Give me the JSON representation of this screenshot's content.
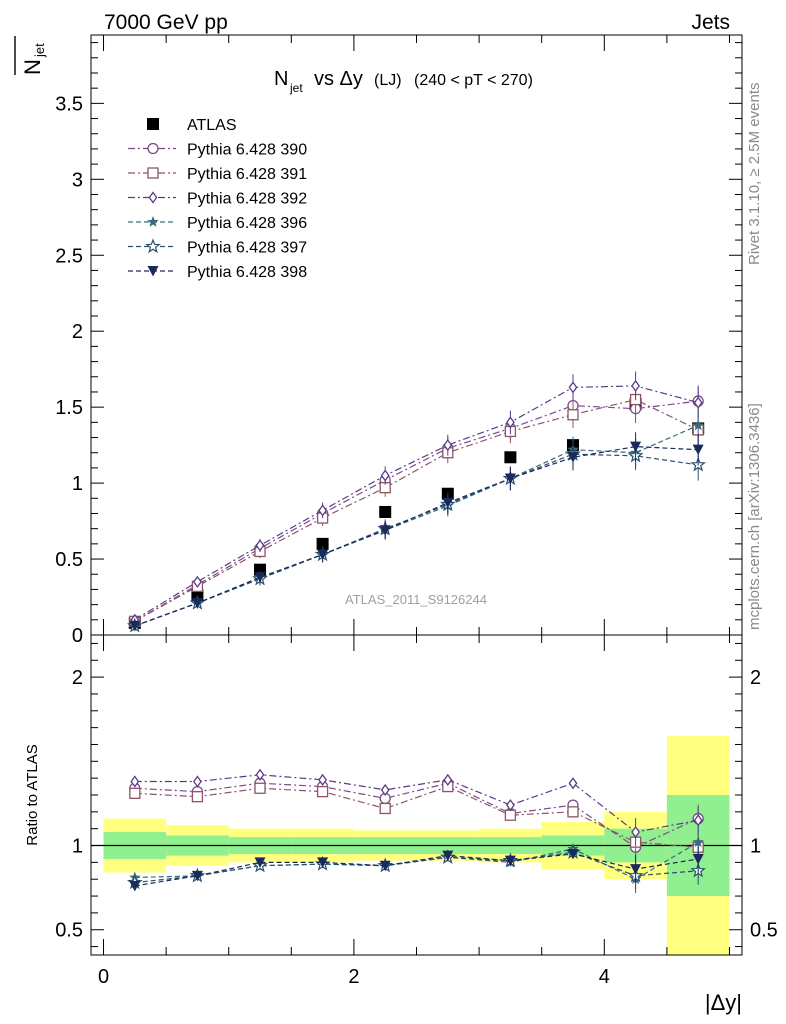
{
  "header": {
    "left": "7000 GeV pp",
    "right": "Jets",
    "side_top": "Rivet 3.1.10, ≥ 2.5M events",
    "side_bottom": "mcplots.cern.ch [arXiv:1306.3436]",
    "watermark": "ATLAS_2011_S9126244"
  },
  "main_panel": {
    "title_n": "N",
    "title_n_sub": "jet",
    "title_mid": "vs Δy",
    "title_lj": "(LJ)",
    "title_cut": "(240 < pT < 270)",
    "ylabel_n": "N",
    "ylabel_sub": "jet"
  },
  "ratio_panel": {
    "ylabel": "Ratio to ATLAS"
  },
  "xaxis": {
    "label": "|Δy|"
  },
  "chart_data": [
    {
      "type": "scatter",
      "panel": "main",
      "x": [
        0.25,
        0.75,
        1.25,
        1.75,
        2.25,
        2.75,
        3.25,
        3.75,
        4.25,
        4.75
      ],
      "xlim": [
        -0.1,
        5.1
      ],
      "ylim": [
        0,
        3.95
      ],
      "xticks": [
        "0",
        "2",
        "4"
      ],
      "yticks": [
        "0",
        "0.5",
        "1",
        "1.5",
        "2",
        "2.5",
        "3",
        "3.5"
      ],
      "series": [
        {
          "name": "ATLAS",
          "color": "#000000",
          "marker": "square-filled",
          "dash": "none",
          "values": [
            0.08,
            0.26,
            0.43,
            0.6,
            0.81,
            0.93,
            1.17,
            1.25,
            1.52,
            1.36
          ]
        },
        {
          "name": "Pythia 6.428 390",
          "color": "#7a4a8a",
          "marker": "circle-open",
          "dash": "dashdot",
          "values": [
            0.09,
            0.33,
            0.57,
            0.8,
            1.02,
            1.23,
            1.36,
            1.51,
            1.49,
            1.54
          ]
        },
        {
          "name": "Pythia 6.428 391",
          "color": "#8a5566",
          "marker": "square-open",
          "dash": "dashdot",
          "values": [
            0.09,
            0.32,
            0.55,
            0.77,
            0.97,
            1.2,
            1.34,
            1.45,
            1.55,
            1.35
          ]
        },
        {
          "name": "Pythia 6.428 392",
          "color": "#5a3a8a",
          "marker": "diamond-open",
          "dash": "dashdot",
          "values": [
            0.1,
            0.35,
            0.59,
            0.82,
            1.05,
            1.25,
            1.4,
            1.63,
            1.64,
            1.53
          ]
        },
        {
          "name": "Pythia 6.428 396",
          "color": "#3a6a7a",
          "marker": "star-filled",
          "dash": "dash",
          "values": [
            0.06,
            0.21,
            0.37,
            0.53,
            0.69,
            0.85,
            1.03,
            1.22,
            1.2,
            1.38
          ]
        },
        {
          "name": "Pythia 6.428 397",
          "color": "#2a5070",
          "marker": "star-open",
          "dash": "dash",
          "values": [
            0.06,
            0.21,
            0.37,
            0.53,
            0.7,
            0.86,
            1.03,
            1.19,
            1.18,
            1.12
          ]
        },
        {
          "name": "Pythia 6.428 398",
          "color": "#1a2a5a",
          "marker": "triangle-down-filled",
          "dash": "dash",
          "values": [
            0.06,
            0.21,
            0.38,
            0.53,
            0.69,
            0.87,
            1.03,
            1.17,
            1.24,
            1.22
          ]
        }
      ]
    },
    {
      "type": "scatter",
      "panel": "ratio",
      "x": [
        0.25,
        0.75,
        1.25,
        1.75,
        2.25,
        2.75,
        3.25,
        3.75,
        4.25,
        4.75
      ],
      "xlim": [
        -0.1,
        5.1
      ],
      "ylim": [
        0.35,
        2.25
      ],
      "xticks": [
        "0",
        "2",
        "4"
      ],
      "yticks": [
        "0.5",
        "1",
        "2"
      ],
      "band_outer": [
        0.16,
        0.12,
        0.1,
        0.1,
        0.09,
        0.09,
        0.1,
        0.14,
        0.2,
        0.65
      ],
      "band_inner": [
        0.08,
        0.06,
        0.05,
        0.05,
        0.05,
        0.05,
        0.05,
        0.06,
        0.1,
        0.3
      ],
      "series": [
        {
          "name": "Pythia 6.428 390",
          "values": [
            1.34,
            1.32,
            1.37,
            1.35,
            1.28,
            1.37,
            1.19,
            1.24,
            0.99,
            1.16
          ]
        },
        {
          "name": "Pythia 6.428 391",
          "values": [
            1.31,
            1.29,
            1.34,
            1.32,
            1.22,
            1.35,
            1.18,
            1.2,
            1.02,
            0.99
          ]
        },
        {
          "name": "Pythia 6.428 392",
          "values": [
            1.38,
            1.38,
            1.42,
            1.39,
            1.33,
            1.39,
            1.24,
            1.37,
            1.08,
            1.15
          ]
        },
        {
          "name": "Pythia 6.428 396",
          "values": [
            0.81,
            0.82,
            0.88,
            0.89,
            0.88,
            0.93,
            0.9,
            0.98,
            0.8,
            1.02
          ]
        },
        {
          "name": "Pythia 6.428 397",
          "values": [
            0.78,
            0.82,
            0.88,
            0.89,
            0.88,
            0.93,
            0.91,
            0.96,
            0.82,
            0.85
          ]
        },
        {
          "name": "Pythia 6.428 398",
          "values": [
            0.76,
            0.82,
            0.9,
            0.9,
            0.88,
            0.94,
            0.91,
            0.95,
            0.86,
            0.92
          ]
        }
      ]
    }
  ]
}
